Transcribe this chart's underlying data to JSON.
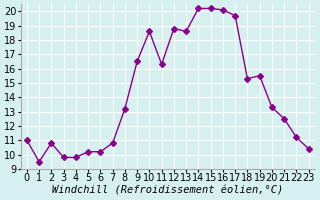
{
  "x": [
    0,
    1,
    2,
    3,
    4,
    5,
    6,
    7,
    8,
    9,
    10,
    11,
    12,
    13,
    14,
    15,
    16,
    17,
    18,
    19,
    20,
    21,
    22,
    23
  ],
  "y": [
    11,
    9.5,
    10.8,
    9.8,
    9.8,
    10.2,
    10.2,
    10.8,
    13.2,
    16.5,
    18.6,
    16.3,
    18.8,
    18.6,
    20.2,
    20.2,
    20.1,
    19.7,
    15.3,
    15.5,
    13.3,
    12.5,
    11.2,
    10.4
  ],
  "line_color": "#8B008B",
  "marker": "D",
  "marker_size": 3,
  "bg_color": "#d6f0f0",
  "grid_color": "#ffffff",
  "xlabel": "Windchill (Refroidissement éolien,°C)",
  "xlim": [
    -0.5,
    23.5
  ],
  "ylim": [
    9,
    20.5
  ],
  "yticks": [
    9,
    10,
    11,
    12,
    13,
    14,
    15,
    16,
    17,
    18,
    19,
    20
  ],
  "xticks": [
    0,
    1,
    2,
    3,
    4,
    5,
    6,
    7,
    8,
    9,
    10,
    11,
    12,
    13,
    14,
    15,
    16,
    17,
    18,
    19,
    20,
    21,
    22,
    23
  ],
  "xlabel_fontsize": 7.5,
  "tick_fontsize": 7
}
